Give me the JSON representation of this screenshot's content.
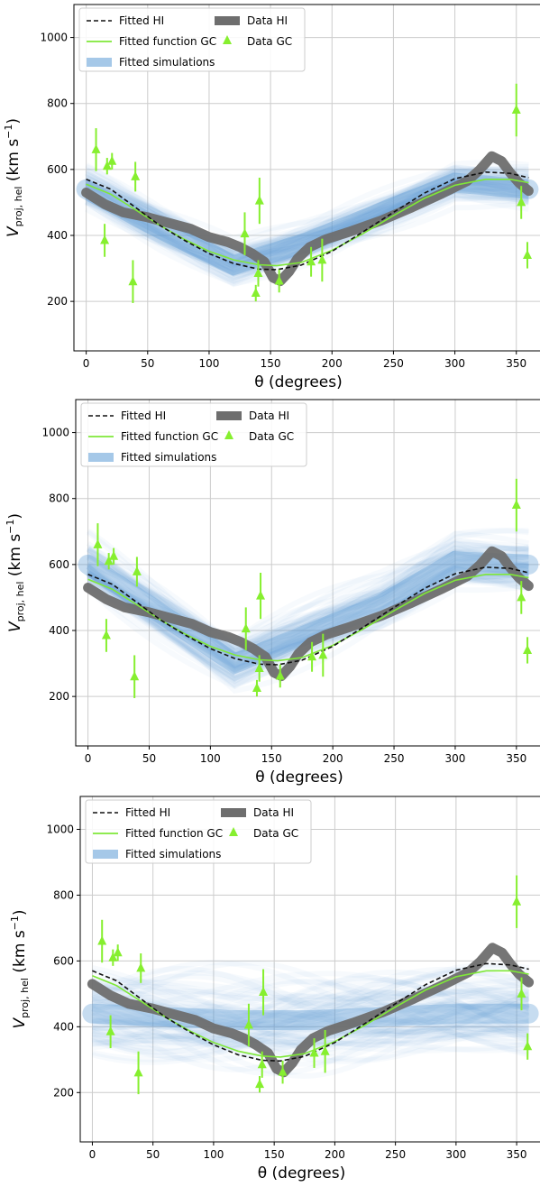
{
  "chart_data": [
    {
      "type": "line",
      "panel": 1,
      "xlabel": "θ (degrees)",
      "ylabel_main": "V",
      "ylabel_sub": "proj, hel",
      "ylabel_units": "(km s",
      "ylabel_exp": "−1",
      "ylabel_close": ")",
      "xlim": [
        -10,
        370
      ],
      "ylim": [
        50,
        1100
      ],
      "xticks": [
        0,
        50,
        100,
        150,
        200,
        250,
        300,
        350
      ],
      "yticks": [
        200,
        400,
        600,
        800,
        1000
      ],
      "grid": true,
      "legend_position": "upper-left",
      "legend": {
        "fitted_hi": "Fitted HI",
        "fitted_gc": "Fitted function GC",
        "fitted_sim": "Fitted simulations",
        "data_hi": "Data HI",
        "data_gc": "Data GC"
      },
      "sim_band": {
        "centers": [
          540,
          420,
          310,
          380,
          470,
          560,
          540
        ],
        "spread": 60
      },
      "data_gc": [
        {
          "x": 8,
          "y": 660,
          "err": 65
        },
        {
          "x": 15,
          "y": 385,
          "err": 50
        },
        {
          "x": 17,
          "y": 610,
          "err": 25
        },
        {
          "x": 21,
          "y": 625,
          "err": 25
        },
        {
          "x": 38,
          "y": 260,
          "err": 65
        },
        {
          "x": 40,
          "y": 578,
          "err": 45
        },
        {
          "x": 129,
          "y": 405,
          "err": 65
        },
        {
          "x": 138,
          "y": 225,
          "err": 25
        },
        {
          "x": 140,
          "y": 285,
          "err": 40
        },
        {
          "x": 141,
          "y": 505,
          "err": 70
        },
        {
          "x": 157,
          "y": 262,
          "err": 35
        },
        {
          "x": 183,
          "y": 320,
          "err": 45
        },
        {
          "x": 192,
          "y": 325,
          "err": 65
        },
        {
          "x": 350,
          "y": 780,
          "err": 80
        },
        {
          "x": 354,
          "y": 500,
          "err": 50
        },
        {
          "x": 359,
          "y": 340,
          "err": 40
        }
      ]
    },
    {
      "type": "line",
      "panel": 2,
      "xlabel": "θ (degrees)",
      "ylabel_main": "V",
      "ylabel_sub": "proj, hel",
      "ylabel_units": "(km s",
      "ylabel_exp": "−1",
      "ylabel_close": ")",
      "xlim": [
        -10,
        370
      ],
      "ylim": [
        50,
        1100
      ],
      "xticks": [
        0,
        50,
        100,
        150,
        200,
        250,
        300,
        350
      ],
      "yticks": [
        200,
        400,
        600,
        800,
        1000
      ],
      "grid": true,
      "legend_position": "upper-left",
      "legend": {
        "fitted_hi": "Fitted HI",
        "fitted_gc": "Fitted function GC",
        "fitted_sim": "Fitted simulations",
        "data_hi": "Data HI",
        "data_gc": "Data GC"
      },
      "sim_band": {
        "centers": [
          600,
          450,
          300,
          390,
          480,
          610,
          600
        ],
        "spread": 80
      },
      "data_gc": [
        {
          "x": 8,
          "y": 660,
          "err": 65
        },
        {
          "x": 15,
          "y": 385,
          "err": 50
        },
        {
          "x": 17,
          "y": 610,
          "err": 25
        },
        {
          "x": 21,
          "y": 625,
          "err": 25
        },
        {
          "x": 38,
          "y": 260,
          "err": 65
        },
        {
          "x": 40,
          "y": 578,
          "err": 45
        },
        {
          "x": 129,
          "y": 405,
          "err": 65
        },
        {
          "x": 138,
          "y": 225,
          "err": 25
        },
        {
          "x": 140,
          "y": 285,
          "err": 40
        },
        {
          "x": 141,
          "y": 505,
          "err": 70
        },
        {
          "x": 157,
          "y": 262,
          "err": 35
        },
        {
          "x": 183,
          "y": 320,
          "err": 45
        },
        {
          "x": 192,
          "y": 325,
          "err": 65
        },
        {
          "x": 350,
          "y": 780,
          "err": 80
        },
        {
          "x": 354,
          "y": 500,
          "err": 50
        },
        {
          "x": 359,
          "y": 340,
          "err": 40
        }
      ]
    },
    {
      "type": "line",
      "panel": 3,
      "xlabel": "θ (degrees)",
      "ylabel_main": "V",
      "ylabel_sub": "proj, hel",
      "ylabel_units": "(km s",
      "ylabel_exp": "−1",
      "ylabel_close": ")",
      "xlim": [
        -10,
        370
      ],
      "ylim": [
        50,
        1100
      ],
      "xticks": [
        0,
        50,
        100,
        150,
        200,
        250,
        300,
        350
      ],
      "yticks": [
        200,
        400,
        600,
        800,
        1000
      ],
      "grid": true,
      "legend_position": "upper-left",
      "legend": {
        "fitted_hi": "Fitted HI",
        "fitted_gc": "Fitted function GC",
        "fitted_sim": "Fitted simulations",
        "data_hi": "Data HI",
        "data_gc": "Data GC"
      },
      "sim_band": {
        "centers": [
          440,
          430,
          420,
          420,
          430,
          440,
          440
        ],
        "spread": 140
      },
      "data_gc": [
        {
          "x": 8,
          "y": 660,
          "err": 65
        },
        {
          "x": 15,
          "y": 385,
          "err": 50
        },
        {
          "x": 17,
          "y": 610,
          "err": 25
        },
        {
          "x": 21,
          "y": 625,
          "err": 25
        },
        {
          "x": 38,
          "y": 260,
          "err": 65
        },
        {
          "x": 40,
          "y": 578,
          "err": 45
        },
        {
          "x": 129,
          "y": 405,
          "err": 65
        },
        {
          "x": 138,
          "y": 225,
          "err": 25
        },
        {
          "x": 140,
          "y": 285,
          "err": 40
        },
        {
          "x": 141,
          "y": 505,
          "err": 70
        },
        {
          "x": 157,
          "y": 262,
          "err": 35
        },
        {
          "x": 183,
          "y": 320,
          "err": 45
        },
        {
          "x": 192,
          "y": 325,
          "err": 65
        },
        {
          "x": 350,
          "y": 780,
          "err": 80
        },
        {
          "x": 354,
          "y": 500,
          "err": 50
        },
        {
          "x": 359,
          "y": 340,
          "err": 40
        }
      ]
    }
  ],
  "shared": {
    "data_hi": [
      {
        "x": 0,
        "y": 530
      },
      {
        "x": 15,
        "y": 495
      },
      {
        "x": 30,
        "y": 470
      },
      {
        "x": 50,
        "y": 455
      },
      {
        "x": 70,
        "y": 435
      },
      {
        "x": 85,
        "y": 420
      },
      {
        "x": 100,
        "y": 395
      },
      {
        "x": 115,
        "y": 380
      },
      {
        "x": 125,
        "y": 365
      },
      {
        "x": 135,
        "y": 345
      },
      {
        "x": 145,
        "y": 320
      },
      {
        "x": 152,
        "y": 272
      },
      {
        "x": 158,
        "y": 262
      },
      {
        "x": 165,
        "y": 290
      },
      {
        "x": 172,
        "y": 330
      },
      {
        "x": 182,
        "y": 365
      },
      {
        "x": 195,
        "y": 388
      },
      {
        "x": 215,
        "y": 412
      },
      {
        "x": 240,
        "y": 445
      },
      {
        "x": 265,
        "y": 485
      },
      {
        "x": 290,
        "y": 528
      },
      {
        "x": 310,
        "y": 565
      },
      {
        "x": 320,
        "y": 598
      },
      {
        "x": 330,
        "y": 640
      },
      {
        "x": 338,
        "y": 625
      },
      {
        "x": 345,
        "y": 590
      },
      {
        "x": 352,
        "y": 560
      },
      {
        "x": 360,
        "y": 535
      }
    ],
    "fitted_hi": [
      {
        "x": 0,
        "y": 570
      },
      {
        "x": 20,
        "y": 540
      },
      {
        "x": 40,
        "y": 485
      },
      {
        "x": 60,
        "y": 430
      },
      {
        "x": 80,
        "y": 385
      },
      {
        "x": 100,
        "y": 345
      },
      {
        "x": 120,
        "y": 315
      },
      {
        "x": 140,
        "y": 298
      },
      {
        "x": 155,
        "y": 296
      },
      {
        "x": 175,
        "y": 310
      },
      {
        "x": 200,
        "y": 352
      },
      {
        "x": 225,
        "y": 410
      },
      {
        "x": 250,
        "y": 470
      },
      {
        "x": 275,
        "y": 528
      },
      {
        "x": 300,
        "y": 572
      },
      {
        "x": 325,
        "y": 592
      },
      {
        "x": 345,
        "y": 588
      },
      {
        "x": 360,
        "y": 575
      }
    ],
    "fitted_gc": [
      {
        "x": 0,
        "y": 555
      },
      {
        "x": 20,
        "y": 525
      },
      {
        "x": 40,
        "y": 478
      },
      {
        "x": 60,
        "y": 430
      },
      {
        "x": 80,
        "y": 388
      },
      {
        "x": 100,
        "y": 352
      },
      {
        "x": 120,
        "y": 326
      },
      {
        "x": 140,
        "y": 311
      },
      {
        "x": 155,
        "y": 308
      },
      {
        "x": 175,
        "y": 318
      },
      {
        "x": 200,
        "y": 355
      },
      {
        "x": 225,
        "y": 405
      },
      {
        "x": 250,
        "y": 460
      },
      {
        "x": 275,
        "y": 512
      },
      {
        "x": 300,
        "y": 552
      },
      {
        "x": 325,
        "y": 570
      },
      {
        "x": 345,
        "y": 570
      },
      {
        "x": 360,
        "y": 560
      }
    ]
  },
  "colors": {
    "fitted_hi": "#111111",
    "fitted_gc": "#7fe838",
    "sim": "#5b9bd5",
    "data_hi": "#6e6e6e",
    "data_gc": "#86ef2f",
    "grid": "#cccccc",
    "axis": "#000000"
  }
}
